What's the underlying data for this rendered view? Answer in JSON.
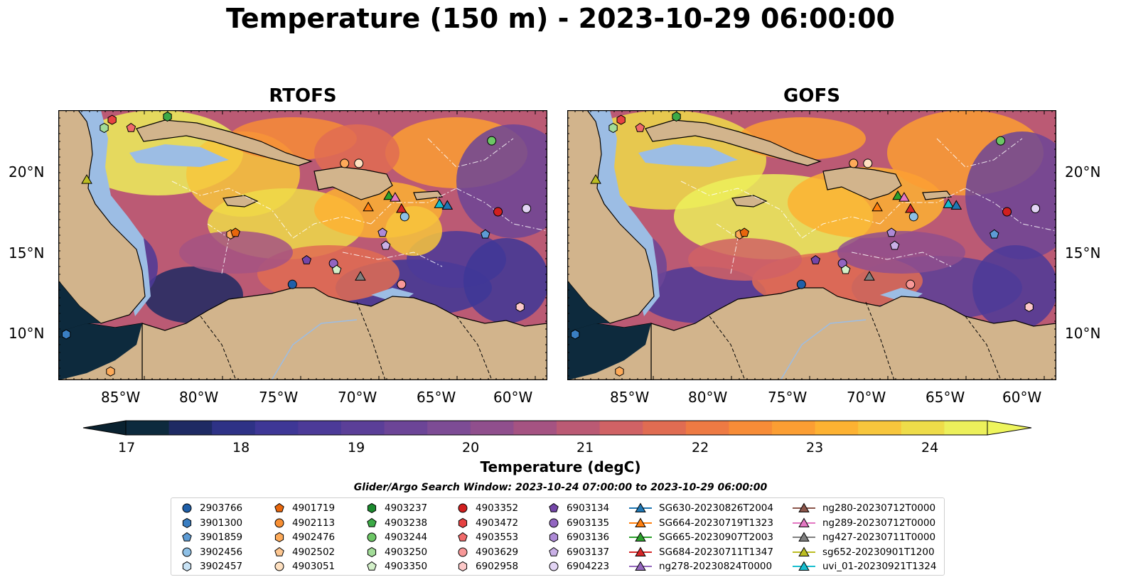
{
  "title": "Temperature (150 m) - 2023-10-29 06:00:00",
  "panels": [
    {
      "name": "RTOFS"
    },
    {
      "name": "GOFS"
    }
  ],
  "lat_ticks": [
    "20°N",
    "15°N",
    "10°N"
  ],
  "lon_ticks": [
    "85°W",
    "80°W",
    "75°W",
    "70°W",
    "65°W",
    "60°W"
  ],
  "colorbar": {
    "label": "Temperature (degC)",
    "ticks": [
      "17",
      "18",
      "19",
      "20",
      "21",
      "22",
      "23",
      "24"
    ],
    "colors": [
      "#0d2a3d",
      "#1e2a63",
      "#2e3286",
      "#3e3796",
      "#4c3a98",
      "#5b3f98",
      "#6c4597",
      "#7d4c95",
      "#904f8d",
      "#a55382",
      "#bb5a74",
      "#d06265",
      "#e06c52",
      "#ee7a43",
      "#f78c37",
      "#fb9e33",
      "#fdb232",
      "#f7c63c",
      "#eedc49",
      "#ecf05b"
    ],
    "under_color": "#0a2230",
    "over_color": "#eef55c"
  },
  "legend": {
    "title": "Glider/Argo Search Window: 2023-10-24 07:00:00 to 2023-10-29 06:00:00",
    "columns": [
      [
        {
          "label": "2903766",
          "marker": "circle",
          "color": "#1f5fa8"
        },
        {
          "label": "3901300",
          "marker": "hexagon",
          "color": "#3a7ec2"
        },
        {
          "label": "3901859",
          "marker": "pentagon",
          "color": "#5d9bd4"
        },
        {
          "label": "3902456",
          "marker": "circle",
          "color": "#8ec0e6"
        },
        {
          "label": "3902457",
          "marker": "hexagon",
          "color": "#c8e2f4"
        }
      ],
      [
        {
          "label": "4901719",
          "marker": "pentagon",
          "color": "#e8660c"
        },
        {
          "label": "4902113",
          "marker": "circle",
          "color": "#f88f33"
        },
        {
          "label": "4902476",
          "marker": "hexagon",
          "color": "#fdaa59"
        },
        {
          "label": "4902502",
          "marker": "pentagon",
          "color": "#fdc690"
        },
        {
          "label": "4903051",
          "marker": "circle",
          "color": "#fee0c0"
        }
      ],
      [
        {
          "label": "4903237",
          "marker": "hexagon",
          "color": "#1b8a2e"
        },
        {
          "label": "4903238",
          "marker": "pentagon",
          "color": "#3caa46"
        },
        {
          "label": "4903244",
          "marker": "circle",
          "color": "#6cc665"
        },
        {
          "label": "4903250",
          "marker": "hexagon",
          "color": "#a2dc98"
        },
        {
          "label": "4903350",
          "marker": "pentagon",
          "color": "#d3f0c9"
        }
      ],
      [
        {
          "label": "4903352",
          "marker": "circle",
          "color": "#d11f1f"
        },
        {
          "label": "4903472",
          "marker": "hexagon",
          "color": "#e64242"
        },
        {
          "label": "4903553",
          "marker": "pentagon",
          "color": "#f06a6a"
        },
        {
          "label": "4903629",
          "marker": "circle",
          "color": "#f89898"
        },
        {
          "label": "6902958",
          "marker": "hexagon",
          "color": "#fcc8c8"
        }
      ],
      [
        {
          "label": "6903134",
          "marker": "pentagon",
          "color": "#7446a8"
        },
        {
          "label": "6903135",
          "marker": "circle",
          "color": "#9265c1"
        },
        {
          "label": "6903136",
          "marker": "hexagon",
          "color": "#ad8ad6"
        },
        {
          "label": "6903137",
          "marker": "pentagon",
          "color": "#c9b0e6"
        },
        {
          "label": "6904223",
          "marker": "circle",
          "color": "#e2d4f4"
        }
      ],
      [
        {
          "label": "SG630-20230826T2004",
          "marker": "triangle-line",
          "color": "#1f77b4"
        },
        {
          "label": "SG664-20230719T1323",
          "marker": "triangle-line",
          "color": "#ff7f0e"
        },
        {
          "label": "SG665-20230907T2003",
          "marker": "triangle-line",
          "color": "#2ca02c"
        },
        {
          "label": "SG684-20230711T1347",
          "marker": "triangle-line",
          "color": "#d62728"
        },
        {
          "label": "ng278-20230824T0000",
          "marker": "triangle-line",
          "color": "#9467bd"
        }
      ],
      [
        {
          "label": "ng280-20230712T0000",
          "marker": "triangle-line",
          "color": "#8c564b"
        },
        {
          "label": "ng289-20230712T0000",
          "marker": "triangle-line",
          "color": "#e377c2"
        },
        {
          "label": "ng427-20230711T0000",
          "marker": "triangle-line",
          "color": "#7f7f7f"
        },
        {
          "label": "sg652-20230901T1200",
          "marker": "triangle-line",
          "color": "#bcbd22"
        },
        {
          "label": "uvi_01-20230921T1324",
          "marker": "triangle-line",
          "color": "#17becf"
        }
      ]
    ]
  },
  "map_colors": {
    "land": "#d2b48c",
    "shelf": "#9cbde4",
    "coast": "#000000"
  }
}
